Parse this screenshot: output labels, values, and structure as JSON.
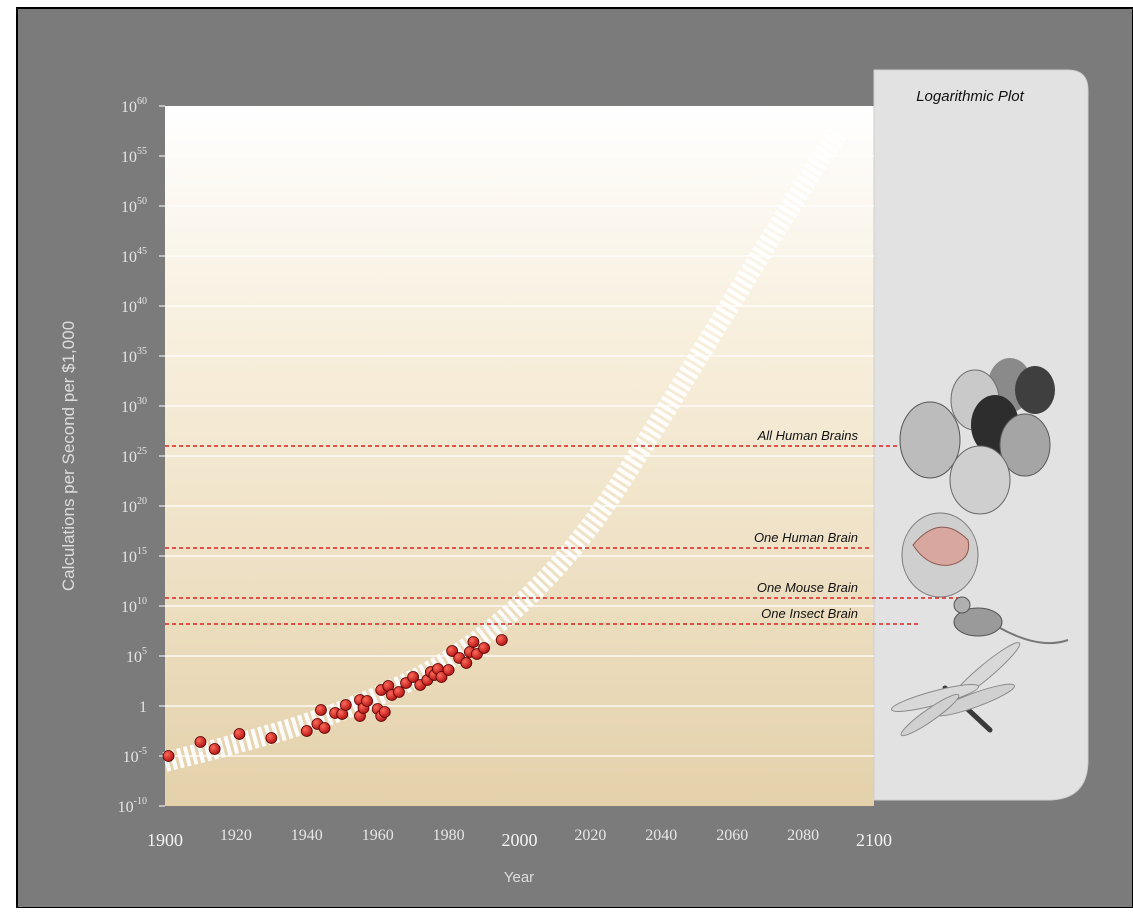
{
  "chart_data": {
    "type": "scatter",
    "title": "",
    "xlabel": "Year",
    "ylabel": "Calculations per Second per $1,000",
    "y_scale": "log",
    "xlim": [
      1900,
      2100
    ],
    "ylim_exponent": [
      -10,
      60
    ],
    "x_ticks": [
      "1900",
      "1920",
      "1940",
      "1960",
      "1980",
      "2000",
      "2020",
      "2040",
      "2060",
      "2080",
      "2100"
    ],
    "y_ticks": [
      {
        "base": "10",
        "exp": "60"
      },
      {
        "base": "10",
        "exp": "55"
      },
      {
        "base": "10",
        "exp": "50"
      },
      {
        "base": "10",
        "exp": "45"
      },
      {
        "base": "10",
        "exp": "40"
      },
      {
        "base": "10",
        "exp": "35"
      },
      {
        "base": "10",
        "exp": "30"
      },
      {
        "base": "10",
        "exp": "25"
      },
      {
        "base": "10",
        "exp": "20"
      },
      {
        "base": "10",
        "exp": "15"
      },
      {
        "base": "10",
        "exp": "10"
      },
      {
        "base": "10",
        "exp": "5"
      },
      {
        "base": "1",
        "exp": ""
      },
      {
        "base": "10",
        "exp": "-5"
      },
      {
        "base": "10",
        "exp": "-10"
      }
    ],
    "grid": true,
    "panel_label": "Logarithmic Plot",
    "points_log10": [
      [
        1901,
        -5.0
      ],
      [
        1910,
        -3.6
      ],
      [
        1914,
        -4.3
      ],
      [
        1921,
        -2.8
      ],
      [
        1930,
        -3.2
      ],
      [
        1940,
        -2.5
      ],
      [
        1943,
        -1.8
      ],
      [
        1944,
        -0.4
      ],
      [
        1945,
        -2.2
      ],
      [
        1948,
        -0.7
      ],
      [
        1950,
        -0.8
      ],
      [
        1951,
        0.1
      ],
      [
        1955,
        -1.0
      ],
      [
        1955,
        0.6
      ],
      [
        1956,
        -0.2
      ],
      [
        1957,
        0.5
      ],
      [
        1960,
        -0.3
      ],
      [
        1961,
        1.6
      ],
      [
        1961,
        -1.0
      ],
      [
        1962,
        -0.6
      ],
      [
        1963,
        2.0
      ],
      [
        1964,
        1.1
      ],
      [
        1966,
        1.4
      ],
      [
        1968,
        2.3
      ],
      [
        1970,
        2.9
      ],
      [
        1972,
        2.1
      ],
      [
        1974,
        2.6
      ],
      [
        1975,
        3.4
      ],
      [
        1976,
        3.1
      ],
      [
        1977,
        3.7
      ],
      [
        1978,
        2.9
      ],
      [
        1980,
        3.6
      ],
      [
        1981,
        5.5
      ],
      [
        1983,
        4.8
      ],
      [
        1985,
        4.3
      ],
      [
        1986,
        5.4
      ],
      [
        1987,
        6.4
      ],
      [
        1988,
        5.2
      ],
      [
        1990,
        5.8
      ],
      [
        1995,
        6.6
      ]
    ],
    "trend_log10": [
      [
        1900,
        -5.6
      ],
      [
        1920,
        -3.8
      ],
      [
        1940,
        -1.8
      ],
      [
        1960,
        0.9
      ],
      [
        1980,
        4.4
      ],
      [
        2000,
        9.8
      ],
      [
        2020,
        17.6
      ],
      [
        2040,
        28.8
      ],
      [
        2060,
        40.5
      ],
      [
        2080,
        52.0
      ],
      [
        2090,
        57.5
      ]
    ],
    "reference_lines": [
      {
        "label": "All Human Brains",
        "log10": 26
      },
      {
        "label": "One Human Brain",
        "log10": 15.8
      },
      {
        "label": "One Mouse Brain",
        "log10": 10.8
      },
      {
        "label": "One Insect Brain",
        "log10": 8.2
      }
    ],
    "colors": {
      "point": "#cc1a1a",
      "reference": "#e02020",
      "background": "#7b7b7b"
    }
  }
}
